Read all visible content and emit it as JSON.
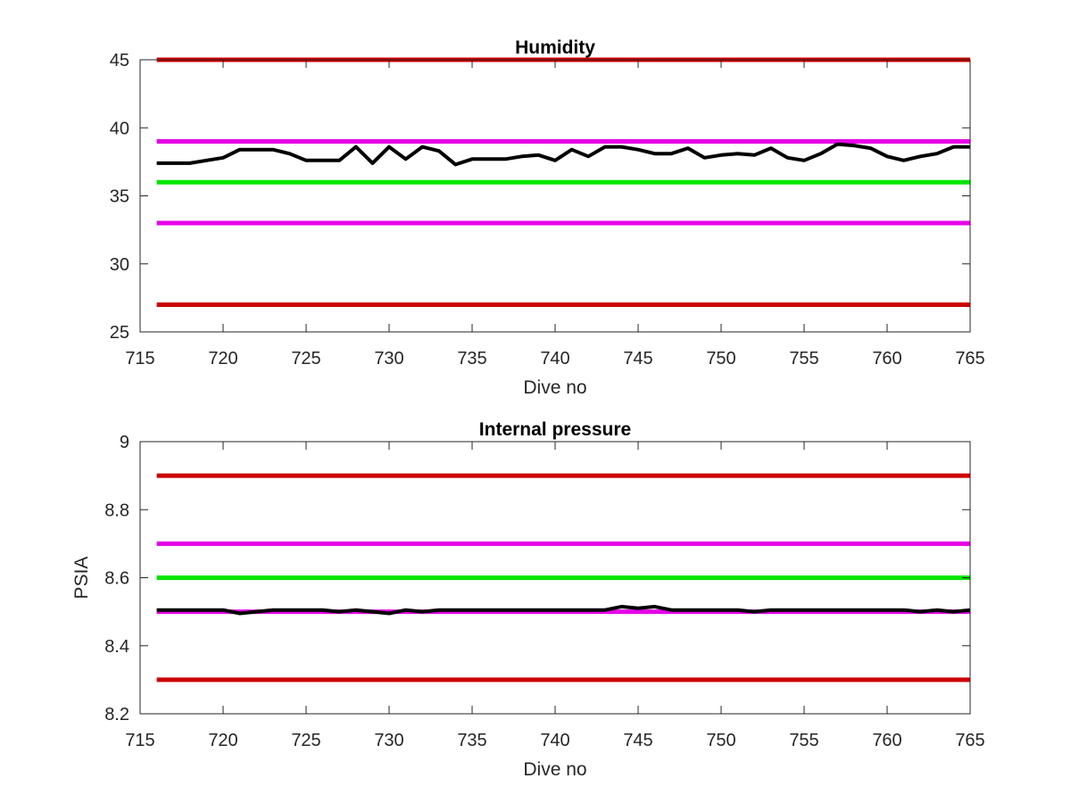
{
  "chart_data": [
    {
      "type": "line",
      "title": "Humidity",
      "xlabel": "Dive no",
      "ylabel": "",
      "xlim": [
        715,
        765
      ],
      "ylim": [
        25,
        45
      ],
      "xticks": [
        715,
        720,
        725,
        730,
        735,
        740,
        745,
        750,
        755,
        760,
        765
      ],
      "yticks": [
        25,
        30,
        35,
        40,
        45
      ],
      "grid": false,
      "legend": "none",
      "thresholds": [
        {
          "value": 45,
          "color": "#cc0000"
        },
        {
          "value": 39,
          "color": "#e600e6"
        },
        {
          "value": 36,
          "color": "#00e600"
        },
        {
          "value": 33,
          "color": "#e600e6"
        },
        {
          "value": 27,
          "color": "#cc0000"
        }
      ],
      "series": [
        {
          "color": "#000000",
          "x": [
            716,
            717,
            718,
            719,
            720,
            721,
            722,
            723,
            724,
            725,
            726,
            727,
            728,
            729,
            730,
            731,
            732,
            733,
            734,
            735,
            736,
            737,
            738,
            739,
            740,
            741,
            742,
            743,
            744,
            745,
            746,
            747,
            748,
            749,
            750,
            751,
            752,
            753,
            754,
            755,
            756,
            757,
            758,
            759,
            760,
            761,
            762,
            763,
            764,
            765
          ],
          "y": [
            37.4,
            37.4,
            37.4,
            37.6,
            37.8,
            38.4,
            38.4,
            38.4,
            38.1,
            37.6,
            37.6,
            37.6,
            38.6,
            37.4,
            38.6,
            37.7,
            38.6,
            38.3,
            37.3,
            37.7,
            37.7,
            37.7,
            37.9,
            38.0,
            37.6,
            38.4,
            37.9,
            38.6,
            38.6,
            38.4,
            38.1,
            38.1,
            38.5,
            37.8,
            38.0,
            38.1,
            38.0,
            38.5,
            37.8,
            37.6,
            38.1,
            38.8,
            38.7,
            38.5,
            37.9,
            37.6,
            37.9,
            38.1,
            38.6,
            38.6
          ]
        }
      ]
    },
    {
      "type": "line",
      "title": "Internal pressure",
      "xlabel": "Dive no",
      "ylabel": "PSIA",
      "xlim": [
        715,
        765
      ],
      "ylim": [
        8.2,
        9
      ],
      "xticks": [
        715,
        720,
        725,
        730,
        735,
        740,
        745,
        750,
        755,
        760,
        765
      ],
      "yticks": [
        8.2,
        8.4,
        8.6,
        8.8,
        9
      ],
      "grid": false,
      "legend": "none",
      "thresholds": [
        {
          "value": 8.9,
          "color": "#cc0000"
        },
        {
          "value": 8.7,
          "color": "#e600e6"
        },
        {
          "value": 8.6,
          "color": "#00e600"
        },
        {
          "value": 8.5,
          "color": "#e600e6"
        },
        {
          "value": 8.3,
          "color": "#cc0000"
        }
      ],
      "series": [
        {
          "color": "#000000",
          "x": [
            716,
            717,
            718,
            719,
            720,
            721,
            722,
            723,
            724,
            725,
            726,
            727,
            728,
            729,
            730,
            731,
            732,
            733,
            734,
            735,
            736,
            737,
            738,
            739,
            740,
            741,
            742,
            743,
            744,
            745,
            746,
            747,
            748,
            749,
            750,
            751,
            752,
            753,
            754,
            755,
            756,
            757,
            758,
            759,
            760,
            761,
            762,
            763,
            764,
            765
          ],
          "y": [
            8.505,
            8.505,
            8.505,
            8.505,
            8.505,
            8.495,
            8.5,
            8.505,
            8.505,
            8.505,
            8.505,
            8.5,
            8.505,
            8.5,
            8.495,
            8.505,
            8.5,
            8.505,
            8.505,
            8.505,
            8.505,
            8.505,
            8.505,
            8.505,
            8.505,
            8.505,
            8.505,
            8.505,
            8.515,
            8.51,
            8.515,
            8.505,
            8.505,
            8.505,
            8.505,
            8.505,
            8.5,
            8.505,
            8.505,
            8.505,
            8.505,
            8.505,
            8.505,
            8.505,
            8.505,
            8.505,
            8.5,
            8.505,
            8.5,
            8.505
          ]
        }
      ]
    }
  ]
}
